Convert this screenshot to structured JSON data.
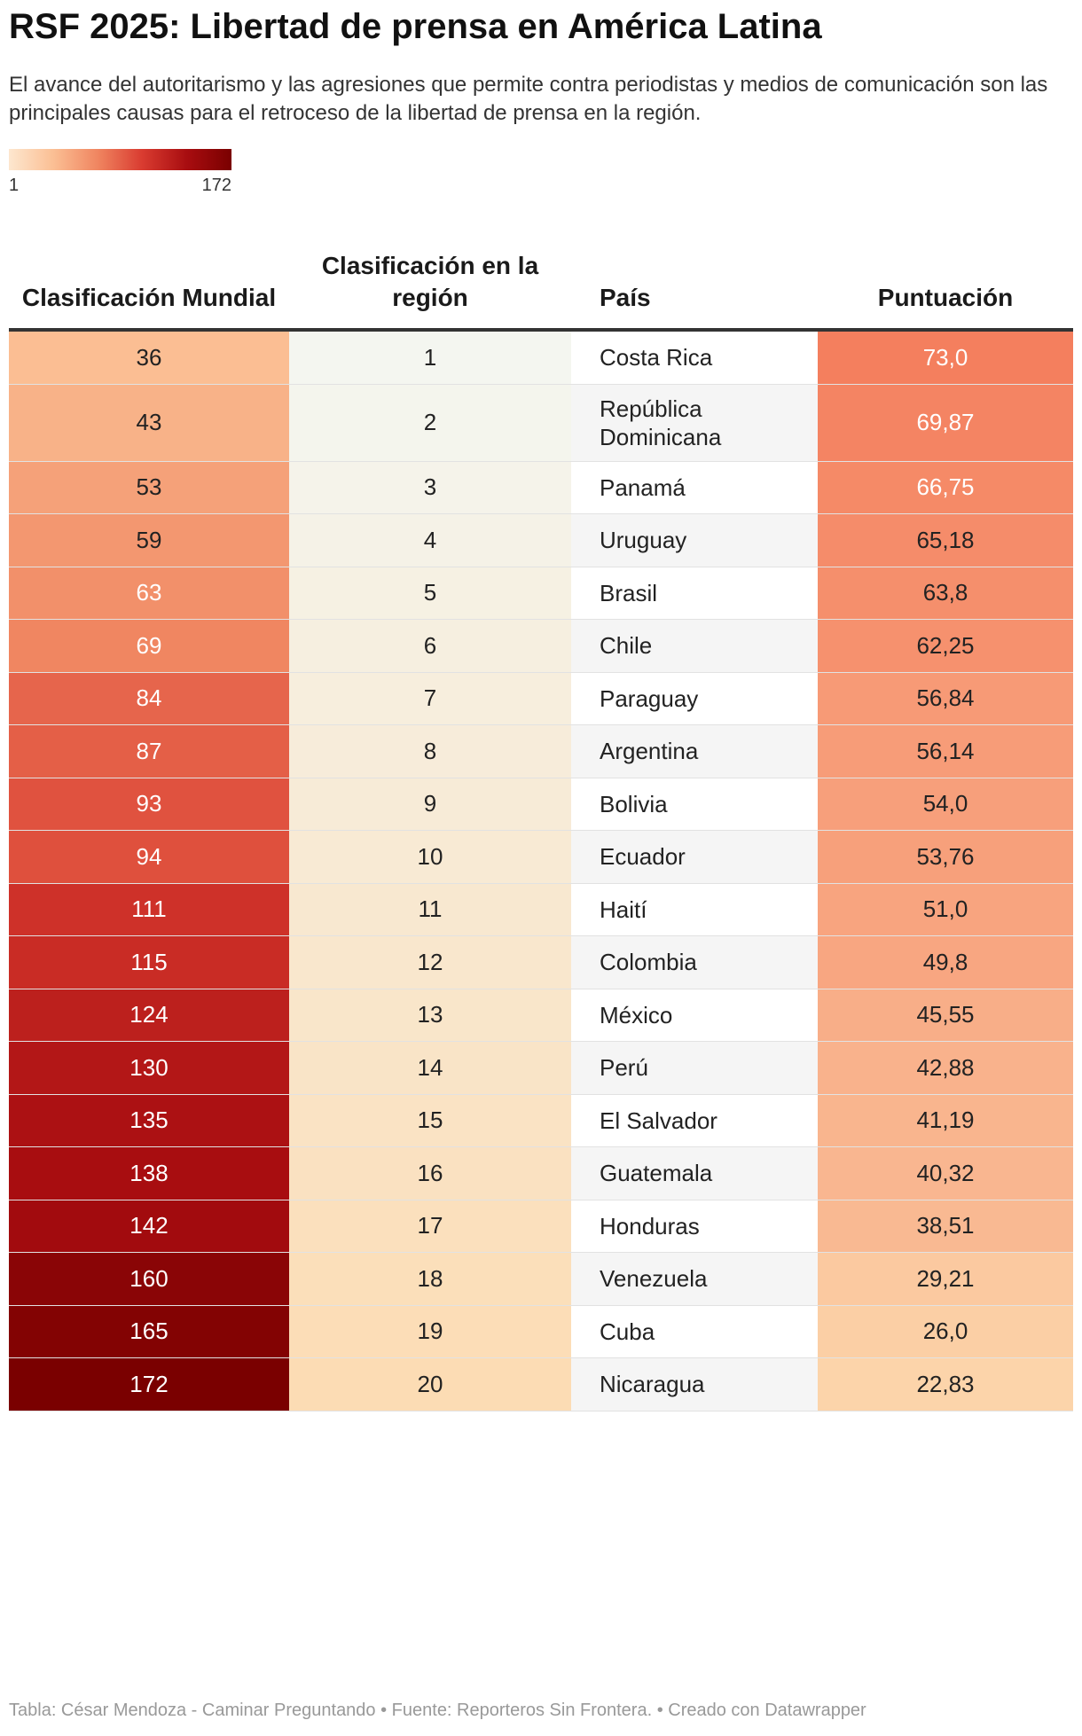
{
  "title": "RSF 2025: Libertad de prensa en América Latina",
  "subtitle": "El avance del autoritarismo y las agresiones que permite contra periodistas y medios de comunicación son las principales causas para el retroceso de la libertad de prensa en la región.",
  "legend": {
    "min": "1",
    "max": "172"
  },
  "columns": {
    "world_rank": "Clasificación Mundial",
    "region_rank": "Clasificación en la región",
    "country": "País",
    "score": "Puntuación"
  },
  "colors": {
    "world_scale": [
      "#fde7cf",
      "#fbbf94",
      "#f08560",
      "#d93b30",
      "#a80d10",
      "#7a0000"
    ],
    "region_scale": [
      "#f4f6f0",
      "#fcdcb4"
    ],
    "score_scale": [
      "#fcd4aa",
      "#f47f5e"
    ],
    "country_row_alt": "#f5f5f5"
  },
  "chart_data": {
    "type": "table",
    "title": "RSF 2025: Libertad de prensa en América Latina",
    "columns": [
      "Clasificación Mundial",
      "Clasificación en la región",
      "País",
      "Puntuación"
    ],
    "rows": [
      {
        "world": "36",
        "region": "1",
        "country": "Costa Rica",
        "score": "73,0"
      },
      {
        "world": "43",
        "region": "2",
        "country": "República Dominicana",
        "score": "69,87"
      },
      {
        "world": "53",
        "region": "3",
        "country": "Panamá",
        "score": "66,75"
      },
      {
        "world": "59",
        "region": "4",
        "country": "Uruguay",
        "score": "65,18"
      },
      {
        "world": "63",
        "region": "5",
        "country": "Brasil",
        "score": "63,8"
      },
      {
        "world": "69",
        "region": "6",
        "country": "Chile",
        "score": "62,25"
      },
      {
        "world": "84",
        "region": "7",
        "country": "Paraguay",
        "score": "56,84"
      },
      {
        "world": "87",
        "region": "8",
        "country": "Argentina",
        "score": "56,14"
      },
      {
        "world": "93",
        "region": "9",
        "country": "Bolivia",
        "score": "54,0"
      },
      {
        "world": "94",
        "region": "10",
        "country": "Ecuador",
        "score": "53,76"
      },
      {
        "world": "111",
        "region": "11",
        "country": "Haití",
        "score": "51,0"
      },
      {
        "world": "115",
        "region": "12",
        "country": "Colombia",
        "score": "49,8"
      },
      {
        "world": "124",
        "region": "13",
        "country": "México",
        "score": "45,55"
      },
      {
        "world": "130",
        "region": "14",
        "country": "Perú",
        "score": "42,88"
      },
      {
        "world": "135",
        "region": "15",
        "country": "El Salvador",
        "score": "41,19"
      },
      {
        "world": "138",
        "region": "16",
        "country": "Guatemala",
        "score": "40,32"
      },
      {
        "world": "142",
        "region": "17",
        "country": "Honduras",
        "score": "38,51"
      },
      {
        "world": "160",
        "region": "18",
        "country": "Venezuela",
        "score": "29,21"
      },
      {
        "world": "165",
        "region": "19",
        "country": "Cuba",
        "score": "26,0"
      },
      {
        "world": "172",
        "region": "20",
        "country": "Nicaragua",
        "score": "22,83"
      }
    ]
  },
  "footer": "Tabla: César Mendoza - Caminar Preguntando • Fuente: Reporteros Sin Frontera.  • Creado con Datawrapper"
}
